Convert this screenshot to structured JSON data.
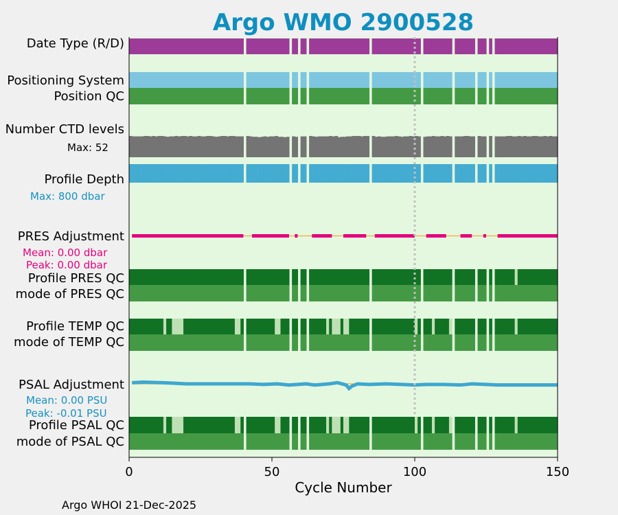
{
  "footer": "Argo WHOI 21-Dec-2025",
  "colors": {
    "background": "#f0f0f0",
    "plot_background": "#e4f8e0",
    "title": "#0f8fbf",
    "date_type": "#9c3c98",
    "positioning_system": "#7ec6e0",
    "qc_mode": "#449a44",
    "qc_profile": "#117224",
    "qc_profile_light": "#bfe0b4",
    "ctd_levels": "#747474",
    "profile_depth": "#44abd1",
    "pres_adjustment": "#e4007c",
    "psal_adjustment": "#3ea7cf",
    "zero_line": "#f0b34c",
    "pres_stats_text": "#e4007c",
    "psal_stats_text": "#1592bf",
    "marker_line": "#c0c0c0"
  },
  "chart_data": {
    "type": "table",
    "title": "Argo WMO 2900528",
    "xlabel": "Cycle Number",
    "xlim": [
      0,
      150
    ],
    "xticks": [
      0,
      50,
      100,
      150
    ],
    "xtick_labels": [
      "0",
      "50",
      "100",
      "150"
    ],
    "marker_cycle": 100,
    "cycle_range": [
      1,
      150
    ],
    "missing_cycles": [
      41,
      57,
      60,
      63,
      85,
      103,
      114,
      122,
      126,
      128
    ],
    "rows": [
      {
        "label": "Date Type (R/D)",
        "kind": "full",
        "color_key": "date_type"
      },
      {
        "label": "Positioning System",
        "kind": "full",
        "color_key": "positioning_system"
      },
      {
        "label": "Position QC",
        "kind": "full",
        "color_key": "qc_mode"
      },
      {
        "label": "Number CTD levels",
        "kind": "levels",
        "color_key": "ctd_levels"
      },
      {
        "label": "Profile Depth",
        "kind": "depth",
        "color_key": "profile_depth"
      },
      {
        "label": "PRES Adjustment",
        "kind": "adjustment",
        "color_key": "pres_adjustment"
      },
      {
        "label": "Profile PRES QC",
        "kind": "qc_profile",
        "color_key": "qc_profile",
        "light_cycles": [
          136
        ]
      },
      {
        "label": "mode of PRES QC",
        "kind": "full",
        "color_key": "qc_mode"
      },
      {
        "label": "Profile TEMP QC",
        "kind": "qc_profile",
        "color_key": "qc_profile",
        "light_cycles": [
          13,
          16,
          17,
          18,
          19,
          38,
          39,
          52,
          53,
          70,
          72,
          73,
          74,
          76,
          77,
          85,
          101,
          107,
          113,
          136
        ]
      },
      {
        "label": "mode of TEMP QC",
        "kind": "full",
        "color_key": "qc_mode"
      },
      {
        "label": "PSAL Adjustment",
        "kind": "adjustment",
        "color_key": "psal_adjustment"
      },
      {
        "label": "Profile PSAL QC",
        "kind": "qc_profile",
        "color_key": "qc_profile",
        "light_cycles": [
          13,
          16,
          17,
          18,
          19,
          38,
          39,
          52,
          53,
          70,
          72,
          73,
          74,
          76,
          77,
          85,
          101,
          107,
          113,
          136
        ]
      },
      {
        "label": "mode of PSAL QC",
        "kind": "full",
        "color_key": "qc_mode"
      }
    ],
    "ctd_levels": {
      "max_label": "Max: 52",
      "max": 52,
      "values": [
        52,
        51,
        51,
        51,
        51,
        52,
        52,
        51,
        52,
        51,
        52,
        52,
        51,
        50,
        51,
        51,
        52,
        51,
        52,
        52,
        51,
        52,
        51,
        51,
        52,
        51,
        51,
        52,
        52,
        51,
        50,
        51,
        52,
        52,
        51,
        52,
        52,
        51,
        51,
        51,
        51,
        52,
        51,
        50,
        50,
        49,
        50,
        51,
        50,
        51,
        51,
        52,
        50,
        50,
        49,
        50,
        51,
        51,
        50,
        50,
        51,
        51,
        51,
        52,
        51,
        50,
        51,
        51,
        51,
        51,
        52,
        51,
        52,
        49,
        50,
        50,
        51,
        51,
        52,
        52,
        52,
        51,
        52,
        52,
        51,
        52,
        50,
        51,
        50,
        50,
        51,
        51,
        51,
        52,
        51,
        50,
        51,
        51,
        52,
        51,
        52,
        51,
        51,
        50,
        51,
        51,
        52,
        51,
        51,
        52,
        51,
        52,
        51,
        51,
        51,
        51,
        51,
        52,
        52,
        51,
        51,
        52,
        52,
        51,
        51,
        51,
        52,
        52,
        51,
        51,
        51,
        51,
        52,
        52,
        51,
        51,
        52,
        51,
        52,
        51,
        51,
        52,
        52,
        51,
        51,
        52,
        51,
        52,
        51,
        51
      ]
    },
    "profile_depth": {
      "max_label": "Max:  800 dbar",
      "max": 800,
      "values": [
        800,
        800,
        800,
        800,
        800,
        800,
        800,
        800,
        800,
        800,
        800,
        800,
        800,
        800,
        800,
        800,
        800,
        800,
        800,
        800,
        800,
        800,
        800,
        800,
        800,
        800,
        800,
        800,
        800,
        800,
        800,
        800,
        800,
        800,
        800,
        800,
        800,
        800,
        800,
        800,
        800,
        800,
        800,
        800,
        800,
        800,
        800,
        800,
        800,
        800,
        800,
        800,
        800,
        800,
        800,
        800,
        800,
        800,
        800,
        800,
        800,
        800,
        800,
        800,
        800,
        800,
        800,
        800,
        800,
        800,
        800,
        800,
        800,
        800,
        800,
        800,
        800,
        800,
        800,
        800,
        800,
        800,
        800,
        800,
        800,
        800,
        800,
        800,
        800,
        800,
        800,
        800,
        800,
        800,
        800,
        800,
        800,
        800,
        800,
        800,
        800,
        800,
        800,
        800,
        800,
        800,
        800,
        800,
        800,
        800,
        800,
        800,
        800,
        800,
        800,
        800,
        800,
        800,
        800,
        800,
        800,
        800,
        800,
        800,
        800,
        800,
        800,
        800,
        800,
        800,
        800,
        800,
        800,
        800,
        800,
        800,
        800,
        800,
        800,
        800,
        800,
        800,
        800,
        800,
        800,
        800,
        800,
        800,
        800,
        800
      ]
    },
    "pres_adjustment": {
      "mean_label": "Mean: 0.00 dbar",
      "peak_label": "Peak: 0.00 dbar",
      "segments": [
        [
          1,
          40
        ],
        [
          43,
          56
        ],
        [
          58,
          59
        ],
        [
          64,
          71
        ],
        [
          75,
          83
        ],
        [
          86,
          100
        ],
        [
          104,
          111
        ],
        [
          116,
          120
        ],
        [
          124,
          125
        ],
        [
          129,
          150
        ]
      ],
      "values": [
        0,
        0
      ]
    },
    "psal_adjustment": {
      "mean_label": "Mean: 0.00 PSU",
      "peak_label": "Peak: -0.01 PSU",
      "ylim": [
        -0.02,
        0.02
      ],
      "x": [
        1,
        5,
        12,
        20,
        30,
        40,
        42,
        47,
        52,
        56,
        62,
        65,
        70,
        73,
        76,
        77,
        78,
        80,
        84,
        90,
        100,
        104,
        110,
        116,
        120,
        125,
        129,
        135,
        140,
        150
      ],
      "y": [
        0.002,
        0.003,
        0.002,
        0,
        0,
        0,
        0,
        -0.001,
        0,
        -0.002,
        0,
        -0.002,
        0,
        0.002,
        -0.002,
        -0.008,
        -0.004,
        0,
        -0.001,
        0,
        -0.002,
        -0.001,
        -0.001,
        -0.002,
        0,
        -0.001,
        -0.002,
        -0.002,
        -0.002,
        -0.002
      ]
    }
  }
}
